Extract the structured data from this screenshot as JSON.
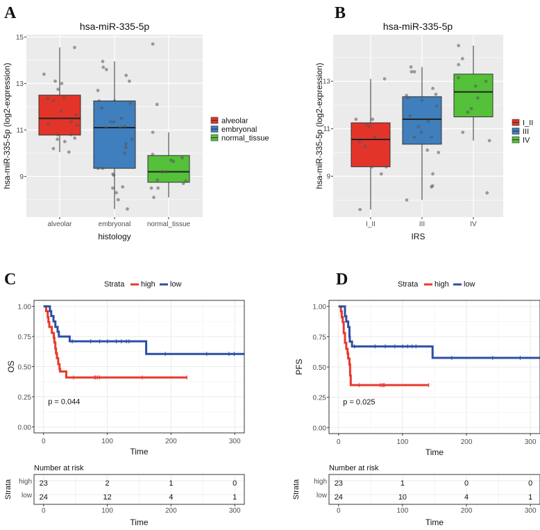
{
  "panel_labels": [
    "A",
    "B",
    "C",
    "D"
  ],
  "colors": {
    "red": "#E3342A",
    "blue": "#3F7FBD",
    "green": "#55C03A",
    "km_red": "#E8392A",
    "km_blue": "#2C4FA6"
  },
  "chart_data": [
    {
      "type": "box",
      "title": "hsa-miR-335-5p",
      "xlabel": "histology",
      "ylabel": "hsa-miR-335-5p (log2-expression)",
      "ylim": [
        7.25,
        15.1
      ],
      "yticks": [
        9,
        11,
        13,
        15
      ],
      "yticklabels": [
        "9",
        "11",
        "13",
        "15"
      ],
      "categories": [
        "alveolar",
        "embryonal",
        "normal_tissue"
      ],
      "legend": [
        "alveolar",
        "embryonal",
        "normal_tissue"
      ],
      "legend_position": "right",
      "boxes": [
        {
          "q1": 10.78,
          "median": 11.5,
          "q3": 12.5,
          "whisker_low": 10.05,
          "whisker_high": 14.55,
          "color": "#E3342A",
          "points": [
            14.55,
            13.4,
            13.0,
            13.1,
            12.75,
            12.4,
            12.35,
            12.25,
            11.8,
            11.65,
            11.35,
            11.25,
            11.2,
            10.8,
            10.8,
            10.65,
            10.6,
            10.5,
            10.2,
            10.05
          ]
        },
        {
          "q1": 9.35,
          "median": 11.1,
          "q3": 12.25,
          "whisker_low": 7.6,
          "whisker_high": 13.95,
          "color": "#3F7FBD",
          "points": [
            13.95,
            13.7,
            13.6,
            13.35,
            13.1,
            12.7,
            12.25,
            12.25,
            12.15,
            11.95,
            11.5,
            11.35,
            11.35,
            11.15,
            11.1,
            11.1,
            10.6,
            10.4,
            10.25,
            10.0,
            9.35,
            9.35,
            9.1,
            9.05,
            8.55,
            8.5,
            8.3,
            8.0,
            7.6
          ]
        },
        {
          "q1": 8.75,
          "median": 9.2,
          "q3": 9.9,
          "whisker_low": 8.1,
          "whisker_high": 10.9,
          "color": "#55C03A",
          "points": [
            14.7,
            12.1,
            10.9,
            9.95,
            9.8,
            9.7,
            9.65,
            9.2,
            9.2,
            8.85,
            8.8,
            8.7,
            8.5,
            8.5,
            8.1
          ]
        }
      ]
    },
    {
      "type": "box",
      "title": "hsa-miR-335-5p",
      "xlabel": "IRS",
      "ylabel": "hsa-miR-335-5p (log2-expression)",
      "ylim": [
        7.28,
        14.96
      ],
      "yticks": [
        9,
        11,
        13
      ],
      "yticklabels": [
        "9",
        "11",
        "13"
      ],
      "categories": [
        "I_II",
        "III",
        "IV"
      ],
      "legend": [
        "I_II",
        "III",
        "IV"
      ],
      "legend_position": "right",
      "boxes": [
        {
          "q1": 9.4,
          "median": 10.55,
          "q3": 11.25,
          "whisker_low": 7.6,
          "whisker_high": 13.1,
          "color": "#E3342A",
          "points": [
            13.1,
            11.4,
            11.4,
            11.2,
            11.1,
            10.65,
            10.45,
            10.25,
            9.4,
            9.4,
            9.1,
            7.6
          ]
        },
        {
          "q1": 10.35,
          "median": 11.4,
          "q3": 12.35,
          "whisker_low": 8.0,
          "whisker_high": 13.6,
          "color": "#3F7FBD",
          "points": [
            13.6,
            13.4,
            13.4,
            12.7,
            12.45,
            12.4,
            12.3,
            12.2,
            11.95,
            11.55,
            11.3,
            11.1,
            10.85,
            10.65,
            10.65,
            10.1,
            10.0,
            9.1,
            8.6,
            8.55,
            8.0
          ]
        },
        {
          "q1": 11.5,
          "median": 12.55,
          "q3": 13.3,
          "whisker_low": 10.5,
          "whisker_high": 14.5,
          "color": "#55C03A",
          "points": [
            14.5,
            13.95,
            13.7,
            13.15,
            13.0,
            12.8,
            12.3,
            11.85,
            11.7,
            10.85,
            10.5,
            8.3
          ]
        }
      ]
    },
    {
      "type": "line",
      "subtype": "kaplan-meier",
      "ylabel": "OS",
      "xlabel": "Time",
      "xlim": [
        -15,
        315
      ],
      "ylim": [
        -0.05,
        1.05
      ],
      "xticks": [
        0,
        100,
        200,
        300
      ],
      "xticklabels": [
        "0",
        "100",
        "200",
        "300"
      ],
      "yticks": [
        0,
        0.25,
        0.5,
        0.75,
        1.0
      ],
      "yticklabels": [
        "0.00",
        "0.25",
        "0.50",
        "0.75",
        "1.00"
      ],
      "legend_title": "Strata",
      "legend_position": "top",
      "pvalue": "p = 0.044",
      "series": [
        {
          "name": "high",
          "color": "#E8392A",
          "end": 225,
          "steps": [
            [
              4,
              0.96
            ],
            [
              6.5,
              0.91
            ],
            [
              7.6,
              0.87
            ],
            [
              9,
              0.83
            ],
            [
              13,
              0.78
            ],
            [
              16,
              0.74
            ],
            [
              17,
              0.7
            ],
            [
              18.5,
              0.65
            ],
            [
              19.5,
              0.61
            ],
            [
              21,
              0.57
            ],
            [
              23,
              0.52
            ],
            [
              25,
              0.48
            ],
            [
              26,
              0.46
            ],
            [
              35.6,
              0.41
            ]
          ],
          "censors": [
            47,
            80,
            82,
            85,
            88,
            155,
            225
          ]
        },
        {
          "name": "low",
          "color": "#2C4FA6",
          "end": 320,
          "steps": [
            [
              10,
              0.96
            ],
            [
              12,
              0.92
            ],
            [
              15.6,
              0.875
            ],
            [
              18.5,
              0.83
            ],
            [
              22,
              0.79
            ],
            [
              24,
              0.75
            ],
            [
              41,
              0.71
            ],
            [
              161,
              0.605
            ]
          ],
          "censors": [
            45,
            74,
            88,
            100,
            114,
            122,
            130,
            134,
            191,
            256,
            291,
            299,
            320
          ]
        }
      ],
      "risk_table": {
        "title": "Number at risk",
        "ylabel": "Strata",
        "xlabel": "Time",
        "times": [
          0,
          100,
          200,
          300
        ],
        "time_labels": [
          "0",
          "100",
          "200",
          "300"
        ],
        "rows": [
          {
            "name": "high",
            "values": [
              "23",
              "2",
              "1",
              "0"
            ]
          },
          {
            "name": "low",
            "values": [
              "24",
              "12",
              "4",
              "1"
            ]
          }
        ]
      }
    },
    {
      "type": "line",
      "subtype": "kaplan-meier",
      "ylabel": "PFS",
      "xlabel": "Time",
      "xlim": [
        -15,
        315
      ],
      "ylim": [
        -0.05,
        1.05
      ],
      "xticks": [
        0,
        100,
        200,
        300
      ],
      "xticklabels": [
        "0",
        "100",
        "200",
        "300"
      ],
      "yticks": [
        0,
        0.25,
        0.5,
        0.75,
        1.0
      ],
      "yticklabels": [
        "0.00",
        "0.25",
        "0.50",
        "0.75",
        "1.00"
      ],
      "legend_title": "Strata",
      "legend_position": "top",
      "pvalue": "p = 0.025",
      "series": [
        {
          "name": "high",
          "color": "#E8392A",
          "end": 141,
          "steps": [
            [
              3.6,
              0.96
            ],
            [
              5,
              0.91
            ],
            [
              6.5,
              0.87
            ],
            [
              8,
              0.78
            ],
            [
              10,
              0.7
            ],
            [
              12,
              0.65
            ],
            [
              14,
              0.61
            ],
            [
              15,
              0.57
            ],
            [
              17,
              0.52
            ],
            [
              18,
              0.43
            ],
            [
              19,
              0.35
            ]
          ],
          "censors": [
            32,
            65,
            68,
            70,
            72,
            141
          ]
        },
        {
          "name": "low",
          "color": "#2C4FA6",
          "end": 320,
          "steps": [
            [
              10,
              0.92
            ],
            [
              12,
              0.875
            ],
            [
              15,
              0.83
            ],
            [
              17,
              0.75
            ],
            [
              17.5,
              0.71
            ],
            [
              21,
              0.67
            ],
            [
              147,
              0.575
            ]
          ],
          "censors": [
            25,
            57,
            73,
            88,
            100,
            108,
            115,
            121,
            177,
            241,
            284,
            315
          ]
        }
      ],
      "risk_table": {
        "title": "Number at risk",
        "ylabel": "Strata",
        "xlabel": "Time",
        "times": [
          0,
          100,
          200,
          300
        ],
        "time_labels": [
          "0",
          "100",
          "200",
          "300"
        ],
        "rows": [
          {
            "name": "high",
            "values": [
              "23",
              "1",
              "0",
              "0"
            ]
          },
          {
            "name": "low",
            "values": [
              "24",
              "10",
              "4",
              "1"
            ]
          }
        ]
      }
    }
  ]
}
